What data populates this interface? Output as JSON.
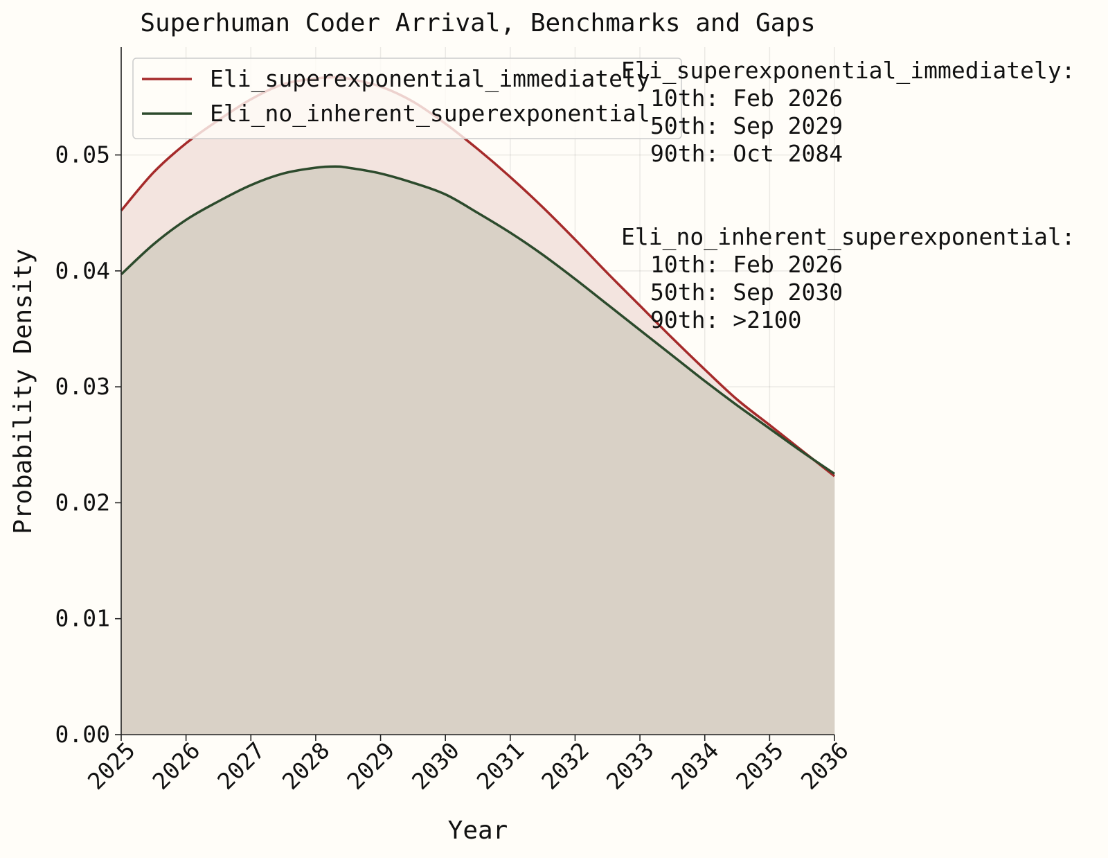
{
  "chart_data": {
    "type": "line",
    "title": "Superhuman Coder Arrival, Benchmarks and Gaps",
    "xlabel": "Year",
    "ylabel": "Probability Density",
    "xlim": [
      2025,
      2036
    ],
    "ylim": [
      0,
      0.0593
    ],
    "x_ticks": [
      "2025",
      "2026",
      "2027",
      "2028",
      "2029",
      "2030",
      "2031",
      "2032",
      "2033",
      "2034",
      "2035",
      "2036"
    ],
    "y_ticks": [
      "0.00",
      "0.01",
      "0.02",
      "0.03",
      "0.04",
      "0.05"
    ],
    "y_tick_values": [
      0,
      0.01,
      0.02,
      0.03,
      0.04,
      0.05
    ],
    "grid": true,
    "legend_position": "top-left",
    "x": [
      2025,
      2025.5,
      2026,
      2026.5,
      2027,
      2027.5,
      2028,
      2028.3,
      2028.5,
      2029,
      2029.5,
      2030,
      2030.5,
      2031,
      2031.5,
      2032,
      2032.5,
      2033,
      2033.5,
      2034,
      2034.5,
      2035,
      2035.5,
      2036
    ],
    "series": [
      {
        "name": "Eli_superexponential_immediately",
        "color": "#a52a2a",
        "fill": "#f3e4df",
        "values": [
          0.0452,
          0.0485,
          0.051,
          0.053,
          0.0548,
          0.0561,
          0.0566,
          0.0567,
          0.0566,
          0.0559,
          0.0546,
          0.0527,
          0.0505,
          0.0481,
          0.0455,
          0.0427,
          0.0398,
          0.037,
          0.0342,
          0.0315,
          0.0289,
          0.0267,
          0.0245,
          0.0223
        ]
      },
      {
        "name": "Eli_no_inherent_superexponential",
        "color": "#2c4a2c",
        "fill": "#d9d1c6",
        "values": [
          0.0397,
          0.0423,
          0.0444,
          0.046,
          0.0474,
          0.0484,
          0.0489,
          0.049,
          0.0489,
          0.0484,
          0.0476,
          0.0466,
          0.045,
          0.0433,
          0.0414,
          0.0393,
          0.0371,
          0.0349,
          0.0327,
          0.0305,
          0.0284,
          0.0264,
          0.0244,
          0.0225
        ]
      }
    ],
    "annotations": [
      {
        "series": "Eli_superexponential_immediately",
        "heading": "Eli_superexponential_immediately:",
        "lines": [
          "10th: Feb 2026",
          "50th: Sep 2029",
          "90th: Oct 2084"
        ]
      },
      {
        "series": "Eli_no_inherent_superexponential",
        "heading": "Eli_no_inherent_superexponential:",
        "lines": [
          "10th: Feb 2026",
          "50th: Sep 2030",
          "90th: >2100"
        ]
      }
    ]
  }
}
